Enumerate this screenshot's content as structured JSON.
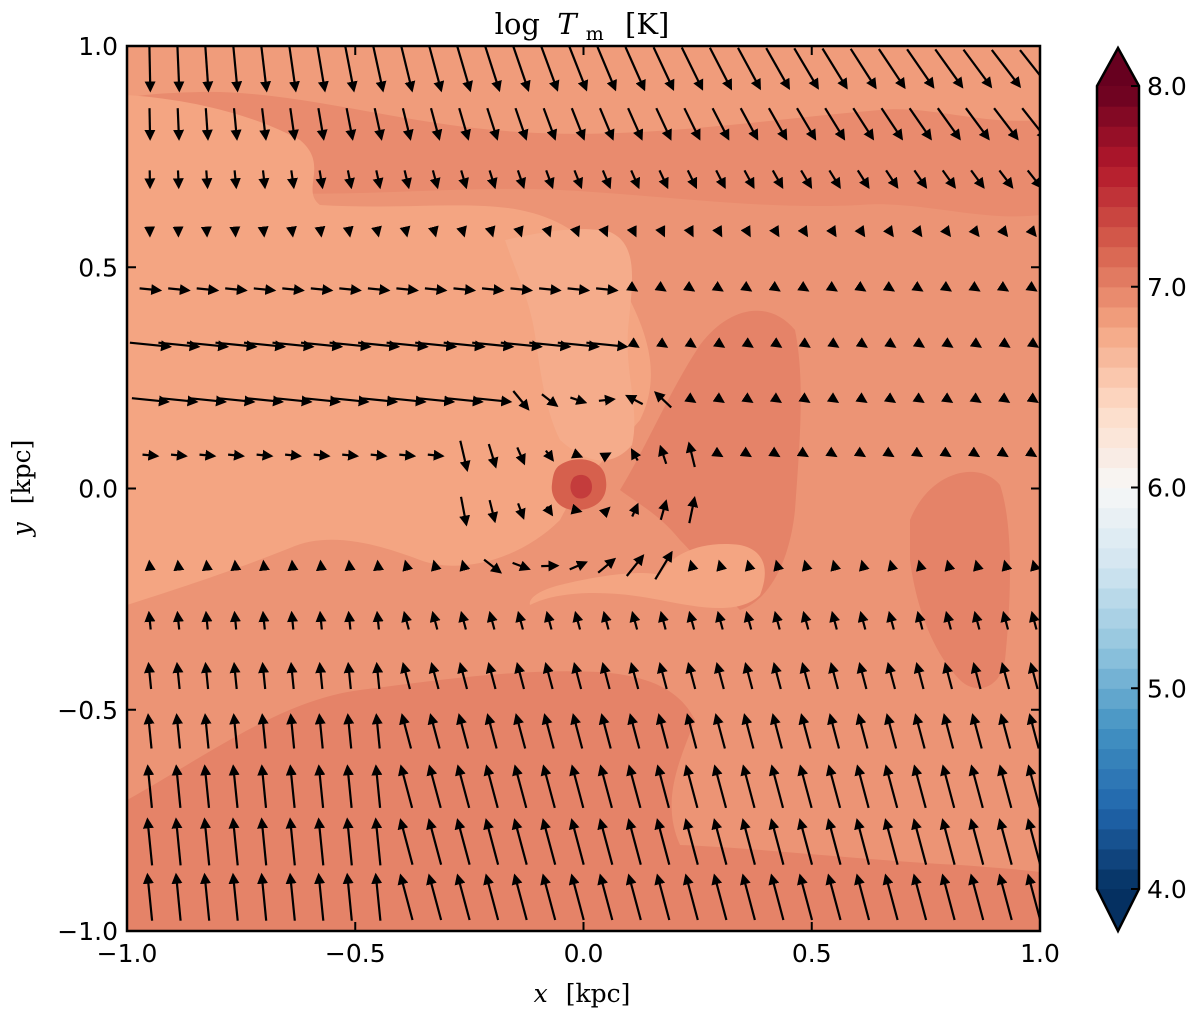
{
  "chart_data": {
    "type": "heatmap",
    "title": "log T_m [K]",
    "title_parts": {
      "prefix": "log",
      "symbol": "T",
      "subscript": "m",
      "unit": "[K]"
    },
    "xlabel": {
      "symbol": "x",
      "unit": "[kpc]"
    },
    "ylabel": {
      "symbol": "y",
      "unit": "[kpc]"
    },
    "xlim": [
      -1.0,
      1.0
    ],
    "ylim": [
      -1.0,
      1.0
    ],
    "x_ticks": [
      -1.0,
      -0.5,
      0.0,
      0.5,
      1.0
    ],
    "y_ticks": [
      -1.0,
      -0.5,
      0.0,
      0.5,
      1.0
    ],
    "x_tick_labels": [
      "−1.0",
      "−0.5",
      "0.0",
      "0.5",
      "1.0"
    ],
    "y_tick_labels": [
      "−1.0",
      "−0.5",
      "0.0",
      "0.5",
      "1.0"
    ],
    "colorbar": {
      "range": [
        4.0,
        8.0
      ],
      "ticks": [
        4.0,
        5.0,
        6.0,
        7.0,
        8.0
      ],
      "tick_labels": [
        "4.0",
        "5.0",
        "6.0",
        "7.0",
        "8.0"
      ],
      "levels": 40,
      "colormap": "RdBu_r",
      "extend": "both",
      "colors": [
        "#053061",
        "#2166ac",
        "#4393c3",
        "#92c5de",
        "#d1e5f0",
        "#f7f7f7",
        "#fddbc7",
        "#f4a582",
        "#d6604d",
        "#b2182b",
        "#67001f"
      ]
    },
    "field_regions": [
      {
        "name": "background",
        "value": 6.9
      },
      {
        "name": "top-band",
        "value": 6.95
      },
      {
        "name": "upper-warm-band",
        "value": 6.85
      },
      {
        "name": "left-cool-region",
        "value": 6.8
      },
      {
        "name": "central-tongue",
        "value": 6.75
      },
      {
        "name": "bottom-hot-band",
        "value": 7.0
      },
      {
        "name": "right-hot-blob",
        "value": 7.0
      },
      {
        "name": "upper-right-hot-blob",
        "value": 7.0
      },
      {
        "name": "center-core",
        "value": 7.2
      },
      {
        "name": "center-peak",
        "value": 7.4
      },
      {
        "name": "low-center-cool-lobe",
        "value": 6.8
      }
    ],
    "velocity_field": {
      "type": "quiver",
      "x": [
        -0.95,
        -0.8875,
        -0.825,
        -0.7625,
        -0.7,
        -0.6375,
        -0.575,
        -0.5125,
        -0.45,
        -0.3875,
        -0.325,
        -0.2625,
        -0.2,
        -0.1375,
        -0.075,
        -0.0125,
        0.05,
        0.1125,
        0.175,
        0.2375,
        0.3,
        0.3625,
        0.425,
        0.4875,
        0.55,
        0.6125,
        0.675,
        0.7375,
        0.8,
        0.8625,
        0.925,
        0.9875
      ],
      "y": [
        0.95,
        0.825,
        0.7,
        0.575,
        0.45,
        0.325,
        0.2,
        0.075,
        -0.05,
        -0.175,
        -0.3,
        -0.425,
        -0.55,
        -0.675,
        -0.8,
        -0.925
      ]
    }
  }
}
